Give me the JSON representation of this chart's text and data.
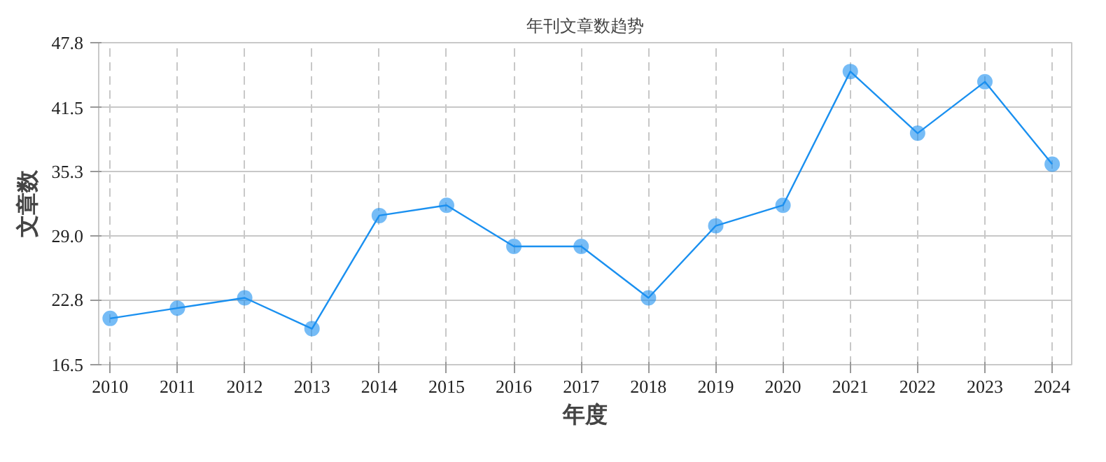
{
  "chart_data": {
    "type": "line",
    "title": "年刊文章数趋势",
    "xlabel": "年度",
    "ylabel": "文章数",
    "categories": [
      "2010",
      "2011",
      "2012",
      "2013",
      "2014",
      "2015",
      "2016",
      "2017",
      "2018",
      "2019",
      "2020",
      "2021",
      "2022",
      "2023",
      "2024"
    ],
    "series": [
      {
        "color": "#1a90f0",
        "values": [
          21,
          22,
          23,
          20,
          31,
          32,
          28,
          28,
          23,
          30,
          32,
          45,
          39,
          44,
          36
        ]
      }
    ],
    "ylim": [
      16.5,
      47.8
    ],
    "yticks": [
      16.5,
      22.8,
      {
        "value": 29,
        "label": "29.0"
      },
      35.3,
      41.5,
      47.8
    ],
    "grid": true,
    "marker": "circle",
    "line_style": "solid"
  }
}
